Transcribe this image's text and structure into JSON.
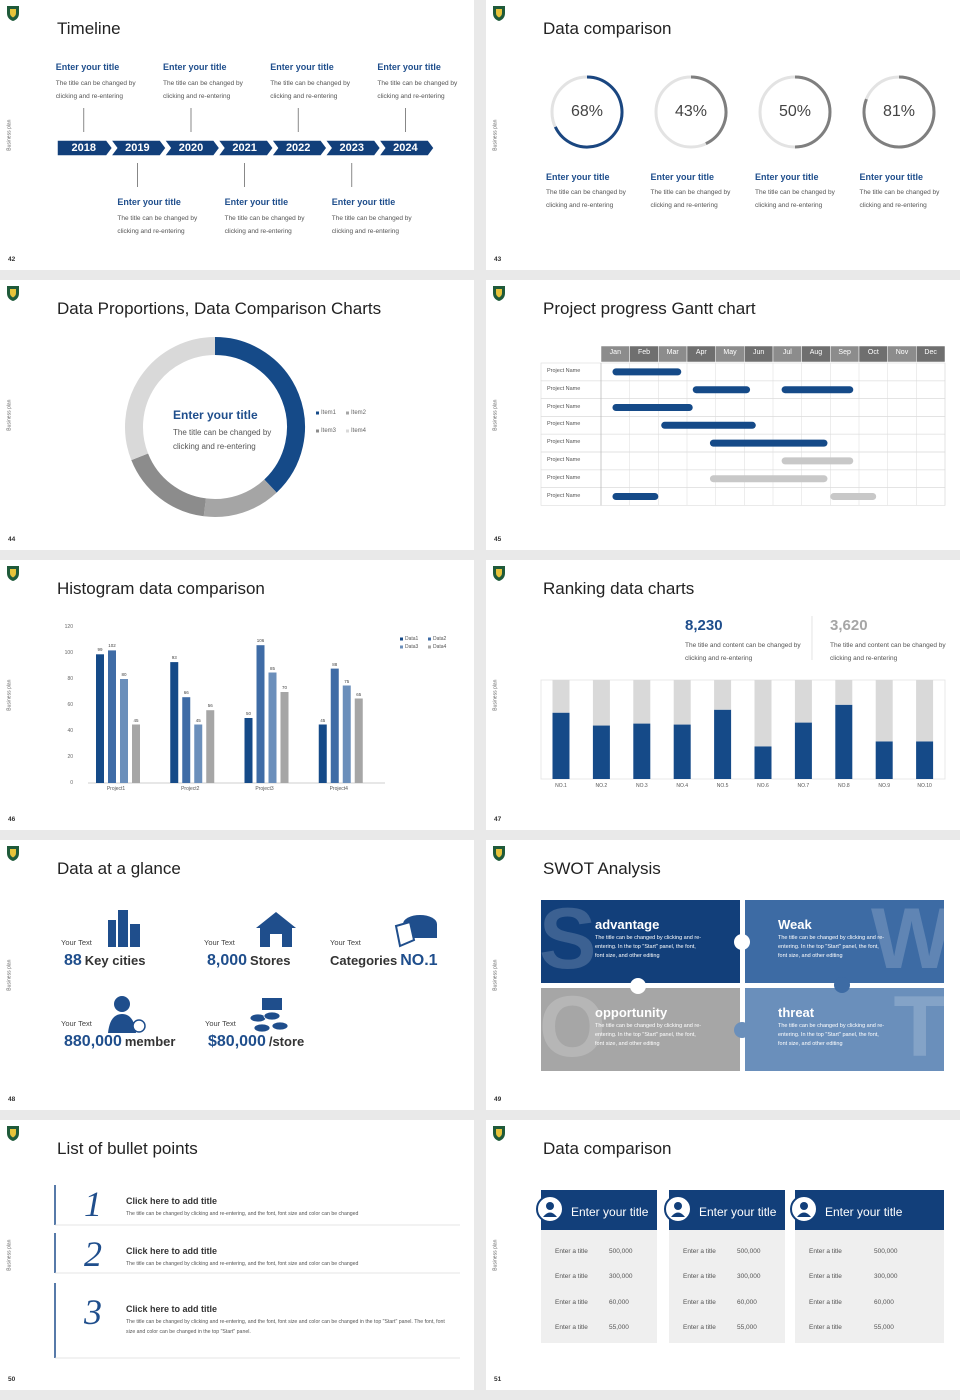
{
  "slides": [
    {
      "number": "42",
      "side_label": "Business plan",
      "title": "Timeline",
      "years": [
        "2018",
        "2019",
        "2020",
        "2021",
        "2022",
        "2023",
        "2024"
      ],
      "events": [
        {
          "title": "Enter your title",
          "text": "The title can be changed by clicking and re-entering"
        },
        {
          "title": "Enter your title",
          "text": "The title can be changed by clicking and re-entering"
        },
        {
          "title": "Enter your title",
          "text": "The title can be changed by clicking and re-entering"
        },
        {
          "title": "Enter your title",
          "text": "The title can be changed by clicking and re-entering"
        },
        {
          "title": "Enter your title",
          "text": "The title can be changed by clicking and re-entering"
        },
        {
          "title": "Enter your title",
          "text": "The title can be changed by clicking and re-entering"
        },
        {
          "title": "Enter your title",
          "text": "The title can be changed by clicking and re-entering"
        }
      ]
    },
    {
      "number": "43",
      "side_label": "Business plan",
      "title": "Data comparison",
      "chart": {
        "type": "donut",
        "values": [
          68,
          43,
          50,
          81
        ],
        "value_labels": [
          "68%",
          "43%",
          "50%",
          "81%"
        ],
        "colors": [
          "#1a4680",
          "#7f7f7f",
          "#7f7f7f",
          "#7f7f7f"
        ],
        "ylim": [
          0,
          100
        ]
      },
      "items": [
        {
          "title": "Enter your title",
          "text": "The title can be changed by clicking and re-entering"
        },
        {
          "title": "Enter your title",
          "text": "The title can be changed by clicking and re-entering"
        },
        {
          "title": "Enter your title",
          "text": "The title can be changed by clicking and re-entering"
        },
        {
          "title": "Enter your title",
          "text": "The title can be changed by clicking and re-entering"
        }
      ]
    },
    {
      "number": "44",
      "side_label": "Business plan",
      "title": "Data Proportions, Data Comparison Charts",
      "chart": {
        "type": "pie",
        "categories": [
          "Item1",
          "Item2",
          "Item3",
          "Item4"
        ],
        "values": [
          38,
          14,
          17,
          31
        ],
        "colors": [
          "#154a88",
          "#a5a5a5",
          "#8c8c8c",
          "#d9d9d9"
        ]
      },
      "center": {
        "title": "Enter your title",
        "text": "The title can be changed by clicking and re-entering"
      }
    },
    {
      "number": "45",
      "side_label": "Business plan",
      "title": "Project progress Gantt chart",
      "chart": {
        "type": "gantt",
        "months": [
          "Jan",
          "Feb",
          "Mar",
          "Apr",
          "May",
          "Jun",
          "Jul",
          "Aug",
          "Sep",
          "Oct",
          "Nov",
          "Dec"
        ],
        "xlim": [
          0,
          12
        ],
        "rows": [
          {
            "name": "Project Name",
            "bars": [
              {
                "start": 0.4,
                "end": 2.8,
                "color": "#154a88"
              }
            ]
          },
          {
            "name": "Project Name",
            "bars": [
              {
                "start": 3.2,
                "end": 5.2,
                "color": "#154a88"
              },
              {
                "start": 6.3,
                "end": 8.8,
                "color": "#154a88"
              }
            ]
          },
          {
            "name": "Project Name",
            "bars": [
              {
                "start": 0.4,
                "end": 3.2,
                "color": "#154a88"
              }
            ]
          },
          {
            "name": "Project Name",
            "bars": [
              {
                "start": 2.1,
                "end": 5.4,
                "color": "#154a88"
              }
            ]
          },
          {
            "name": "Project Name",
            "bars": [
              {
                "start": 3.8,
                "end": 7.9,
                "color": "#154a88"
              }
            ]
          },
          {
            "name": "Project Name",
            "bars": [
              {
                "start": 6.3,
                "end": 8.8,
                "color": "#c8c8c8"
              }
            ]
          },
          {
            "name": "Project Name",
            "bars": [
              {
                "start": 3.8,
                "end": 7.9,
                "color": "#c8c8c8"
              }
            ]
          },
          {
            "name": "Project Name",
            "bars": [
              {
                "start": 0.4,
                "end": 2.0,
                "color": "#154a88"
              },
              {
                "start": 8.0,
                "end": 9.6,
                "color": "#c8c8c8"
              }
            ]
          }
        ]
      }
    },
    {
      "number": "46",
      "side_label": "Business plan",
      "title": "Histogram data comparison",
      "chart": {
        "type": "bar",
        "categories": [
          "Project1",
          "Project2",
          "Project3",
          "Project4"
        ],
        "series": [
          {
            "name": "Data1",
            "color": "#154a88",
            "values": [
              99,
              93,
              50,
              45
            ]
          },
          {
            "name": "Data2",
            "color": "#3f6ca6",
            "values": [
              102,
              66,
              106,
              88
            ]
          },
          {
            "name": "Data3",
            "color": "#6b8fbb",
            "values": [
              80,
              45,
              85,
              75
            ]
          },
          {
            "name": "Data4",
            "color": "#a6a6a6",
            "values": [
              45,
              56,
              70,
              65
            ]
          }
        ],
        "ylim": [
          0,
          120
        ],
        "yticks": [
          0,
          20,
          40,
          60,
          80,
          100,
          120
        ]
      }
    },
    {
      "number": "47",
      "side_label": "Business plan",
      "title": "Ranking data charts",
      "stats": [
        {
          "value": "8,230",
          "text": "The title and content can be changed by clicking and re-entering",
          "color": "#1f4e8c"
        },
        {
          "value": "3,620",
          "text": "The title and content can be changed by clicking and re-entering",
          "color": "#a6a6a6"
        }
      ],
      "chart": {
        "type": "stacked-bar",
        "categories": [
          "NO.1",
          "NO.2",
          "NO.3",
          "NO.4",
          "NO.5",
          "NO.6",
          "NO.7",
          "NO.8",
          "NO.9",
          "NO.10"
        ],
        "series": [
          {
            "color": "#154a88",
            "values": [
              67,
              54,
              56,
              55,
              70,
              33,
              57,
              75,
              38,
              38
            ]
          },
          {
            "color": "#d9d9d9",
            "values": [
              33,
              46,
              44,
              45,
              30,
              67,
              43,
              25,
              62,
              62
            ]
          }
        ],
        "ylim": [
          0,
          100
        ]
      }
    },
    {
      "number": "48",
      "side_label": "Business plan",
      "title": "Data at a glance",
      "items": [
        {
          "label": "Your Text",
          "value": "88",
          "unit": "Key cities"
        },
        {
          "label": "Your Text",
          "value": "8,000",
          "unit": "Stores"
        },
        {
          "label": "Your Text",
          "prefix": "Categories",
          "value": "NO.1"
        },
        {
          "label": "Your Text",
          "value": "880,000",
          "unit": "member"
        },
        {
          "label": "Your Text",
          "value": "$80,000",
          "unit": "/store"
        }
      ]
    },
    {
      "number": "49",
      "side_label": "Business plan",
      "title": "SWOT Analysis",
      "quadrants": [
        {
          "letter": "S",
          "title": "advantage",
          "text": "The title can be changed by clicking and re-entering. In the top \"Start\" panel, the font, font size, and other editing"
        },
        {
          "letter": "W",
          "title": "Weak",
          "text": "The title can be changed by clicking and re-entering. In the top \"Start\" panel, the font, font size, and other editing"
        },
        {
          "letter": "O",
          "title": "opportunity",
          "text": "The title can be changed by clicking and re-entering. In the top \"Start\" panel, the font, font size, and other editing"
        },
        {
          "letter": "T",
          "title": "threat",
          "text": "The title can be changed by clicking and re-entering. In the top \"Start\" panel, the font, font size, and other editing"
        }
      ]
    },
    {
      "number": "50",
      "side_label": "Business plan",
      "title": "List of bullet points",
      "items": [
        {
          "number": "1",
          "title": "Click here to add title",
          "text": "The title can be changed by clicking and re-entering, and the font, font size and color can be changed"
        },
        {
          "number": "2",
          "title": "Click here to add title",
          "text": "The title can be changed by clicking and re-entering, and the font, font size and color can be changed"
        },
        {
          "number": "3",
          "title": "Click here to add title",
          "text": "The title can be changed by clicking and re-entering, and the font, font size and color can be changed in the top \"Start\" panel. The font, font size and color can be changed in the top \"Start\" panel."
        }
      ]
    },
    {
      "number": "51",
      "side_label": "Business plan",
      "title": "Data comparison",
      "cards": [
        {
          "title": "Enter your title",
          "rows": [
            {
              "label": "Enter a title",
              "value": "500,000"
            },
            {
              "label": "Enter a title",
              "value": "300,000"
            },
            {
              "label": "Enter a title",
              "value": "60,000"
            },
            {
              "label": "Enter a title",
              "value": "55,000"
            }
          ]
        },
        {
          "title": "Enter your title",
          "rows": [
            {
              "label": "Enter a title",
              "value": "500,000"
            },
            {
              "label": "Enter a title",
              "value": "300,000"
            },
            {
              "label": "Enter a title",
              "value": "60,000"
            },
            {
              "label": "Enter a title",
              "value": "55,000"
            }
          ]
        },
        {
          "title": "Enter your title",
          "rows": [
            {
              "label": "Enter a title",
              "value": "500,000"
            },
            {
              "label": "Enter a title",
              "value": "300,000"
            },
            {
              "label": "Enter a title",
              "value": "60,000"
            },
            {
              "label": "Enter a title",
              "value": "55,000"
            }
          ]
        }
      ]
    }
  ]
}
